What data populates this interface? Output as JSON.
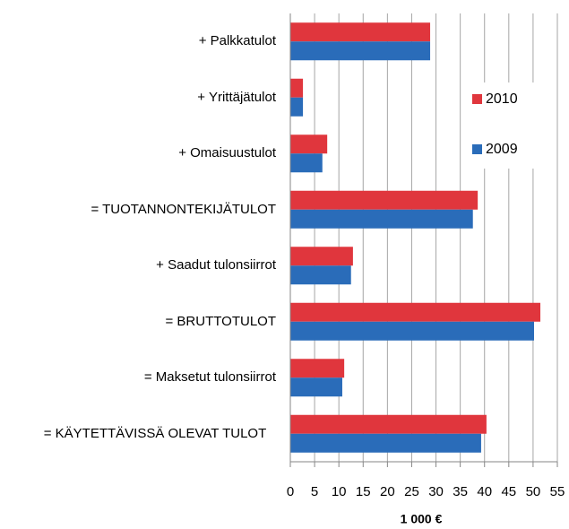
{
  "chart_data": {
    "type": "hbar",
    "categories": [
      "+ Palkkatulot",
      "+ Yrittäjätulot",
      "+ Omaisuustulot",
      "= TUOTANNONTEKIJÄTULOT",
      "+ Saadut tulonsiirrot",
      "= BRUTTOTULOT",
      "= Maksetut tulonsiirrot",
      "= KÄYTETTÄVISSÄ OLEVAT TULOT"
    ],
    "series": [
      {
        "name": "2010",
        "color": "#e0363d",
        "values": [
          28.8,
          2.6,
          7.6,
          38.6,
          12.9,
          51.5,
          11.1,
          40.4
        ]
      },
      {
        "name": "2009",
        "color": "#2a6cb9",
        "values": [
          28.8,
          2.6,
          6.6,
          37.6,
          12.5,
          50.2,
          10.7,
          39.3
        ]
      }
    ],
    "xlabel": "1 000 €",
    "xlim": [
      0,
      55
    ],
    "xticks": [
      0,
      5,
      10,
      15,
      20,
      25,
      30,
      35,
      40,
      45,
      50,
      55
    ],
    "grid": true,
    "legend": "upper right"
  }
}
